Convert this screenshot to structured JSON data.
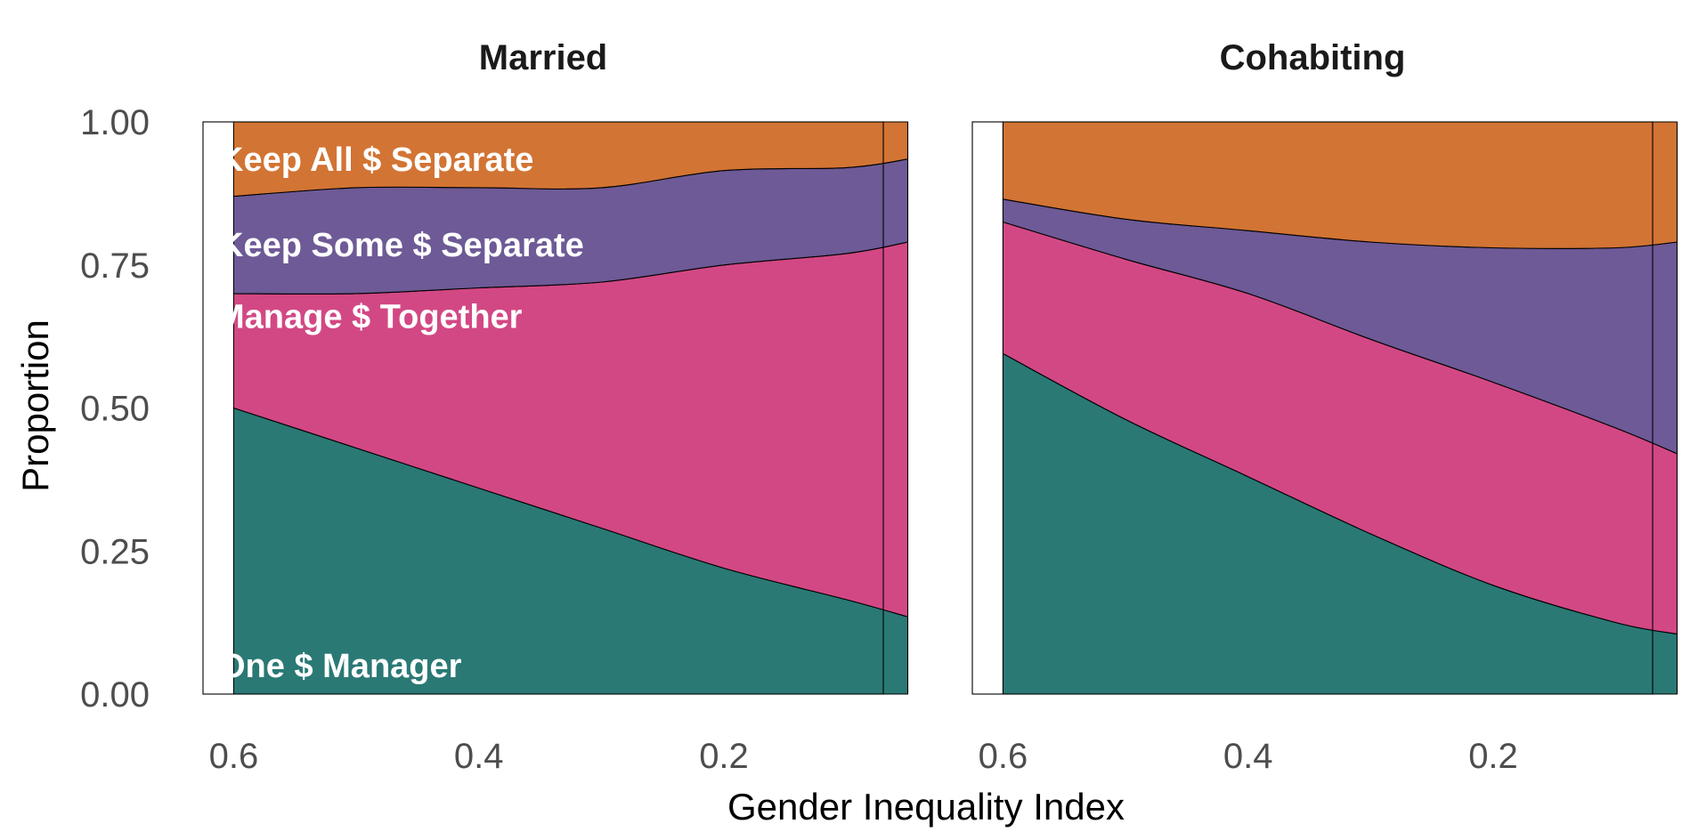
{
  "chart_data": {
    "type": "area",
    "stacked": true,
    "xlabel": "Gender Inequality Index",
    "ylabel": "Proportion",
    "xlim": [
      0.625,
      0.07
    ],
    "ylim": [
      0,
      1
    ],
    "x_ticks": [
      "0.6",
      "0.4",
      "0.2"
    ],
    "y_ticks": [
      "0.00",
      "0.25",
      "0.50",
      "0.75",
      "1.00"
    ],
    "grid": false,
    "colors": {
      "One $ Manager": "#2a7975",
      "Manage $ Together": "#d24884",
      "Keep Some $ Separate": "#6d5a96",
      "Keep All $ Separate": "#d27434"
    },
    "panels": [
      {
        "title": "Married",
        "x": [
          0.6,
          0.5,
          0.4,
          0.3,
          0.2,
          0.1,
          0.05
        ],
        "series": [
          {
            "name": "One $ Manager",
            "label": "One $ Manager",
            "values": [
              0.5,
              0.43,
              0.36,
              0.29,
              0.22,
              0.165,
              0.135
            ]
          },
          {
            "name": "Manage $ Together",
            "label": "Manage $ Together",
            "values": [
              0.2,
              0.27,
              0.35,
              0.43,
              0.53,
              0.605,
              0.655
            ]
          },
          {
            "name": "Keep Some $ Separate",
            "label": "Keep Some $ Separate",
            "values": [
              0.17,
              0.185,
              0.175,
              0.165,
              0.165,
              0.15,
              0.145
            ]
          },
          {
            "name": "Keep All $ Separate",
            "label": "Keep All $ Separate",
            "values": [
              0.13,
              0.115,
              0.115,
              0.115,
              0.085,
              0.08,
              0.065
            ]
          }
        ]
      },
      {
        "title": "Cohabiting",
        "x": [
          0.6,
          0.5,
          0.4,
          0.3,
          0.2,
          0.1,
          0.05
        ],
        "series": [
          {
            "name": "One $ Manager",
            "values": [
              0.595,
              0.48,
              0.38,
              0.28,
              0.19,
              0.125,
              0.105
            ]
          },
          {
            "name": "Manage $ Together",
            "values": [
              0.23,
              0.28,
              0.32,
              0.34,
              0.355,
              0.34,
              0.315
            ]
          },
          {
            "name": "Keep Some $ Separate",
            "values": [
              0.04,
              0.07,
              0.11,
              0.17,
              0.235,
              0.315,
              0.37
            ]
          },
          {
            "name": "Keep All $ Separate",
            "values": [
              0.135,
              0.17,
              0.19,
              0.21,
              0.22,
              0.22,
              0.21
            ]
          }
        ]
      }
    ]
  }
}
